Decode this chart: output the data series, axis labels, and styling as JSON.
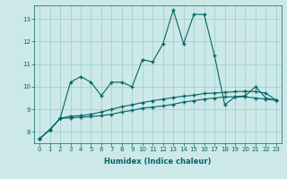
{
  "x": [
    0,
    1,
    2,
    3,
    4,
    5,
    6,
    7,
    8,
    9,
    10,
    11,
    12,
    13,
    14,
    15,
    16,
    17,
    18,
    19,
    20,
    21,
    22,
    23
  ],
  "line1": [
    7.7,
    8.1,
    8.6,
    10.2,
    10.45,
    10.2,
    9.6,
    10.2,
    10.2,
    10.0,
    11.2,
    11.1,
    11.9,
    13.4,
    11.9,
    13.2,
    13.2,
    11.4,
    9.2,
    9.55,
    9.6,
    10.0,
    9.5,
    9.4
  ],
  "line2": [
    7.7,
    8.1,
    8.6,
    8.7,
    8.72,
    8.78,
    8.88,
    9.0,
    9.12,
    9.2,
    9.3,
    9.38,
    9.45,
    9.52,
    9.58,
    9.62,
    9.7,
    9.72,
    9.75,
    9.78,
    9.8,
    9.78,
    9.72,
    9.4
  ],
  "line3": [
    7.7,
    8.1,
    8.6,
    8.62,
    8.65,
    8.68,
    8.72,
    8.78,
    8.88,
    8.95,
    9.05,
    9.1,
    9.15,
    9.22,
    9.32,
    9.38,
    9.45,
    9.5,
    9.55,
    9.55,
    9.55,
    9.5,
    9.45,
    9.4
  ],
  "bg_color": "#cce8e8",
  "grid_color": "#99cccc",
  "line_color": "#006666",
  "xlabel": "Humidex (Indice chaleur)",
  "ylim": [
    7.5,
    13.6
  ],
  "xlim_min": -0.5,
  "xlim_max": 23.5,
  "yticks": [
    8,
    9,
    10,
    11,
    12,
    13
  ],
  "xticks": [
    0,
    1,
    2,
    3,
    4,
    5,
    6,
    7,
    8,
    9,
    10,
    11,
    12,
    13,
    14,
    15,
    16,
    17,
    18,
    19,
    20,
    21,
    22,
    23
  ],
  "marker": "+",
  "marker_size": 3,
  "linewidth": 0.8,
  "tick_fontsize": 5.0,
  "xlabel_fontsize": 6.0
}
